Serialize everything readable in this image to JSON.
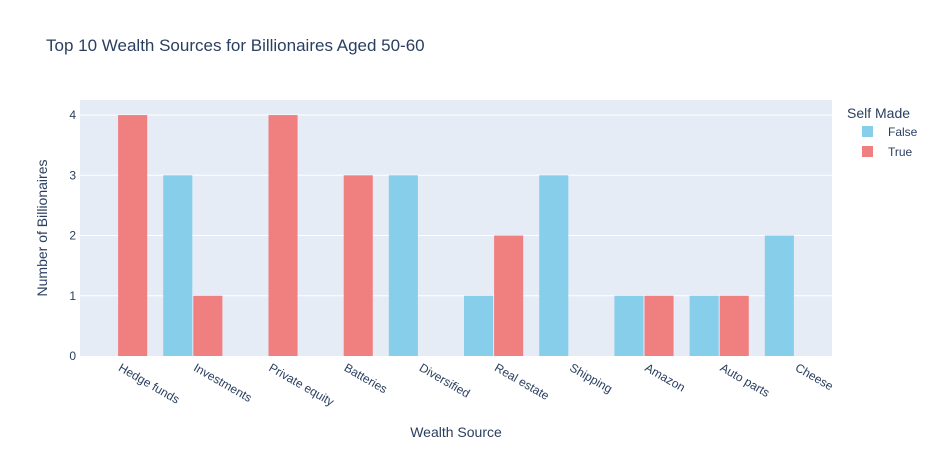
{
  "chart_data": {
    "type": "bar",
    "title": "Top 10 Wealth Sources for Billionaires Aged 50-60",
    "xlabel": "Wealth Source",
    "ylabel": "Number of Billionaires",
    "categories": [
      "Hedge funds",
      "Investments",
      "Private equity",
      "Batteries",
      "Diversified",
      "Real estate",
      "Shipping",
      "Amazon",
      "Auto parts",
      "Cheese"
    ],
    "series": [
      {
        "name": "False",
        "color": "#87ceeb",
        "values": [
          0,
          3,
          0,
          0,
          3,
          1,
          3,
          1,
          1,
          2
        ]
      },
      {
        "name": "True",
        "color": "#f08080",
        "values": [
          4,
          1,
          4,
          3,
          0,
          2,
          0,
          1,
          1,
          0
        ]
      }
    ],
    "ylim": [
      0,
      4.25
    ],
    "yticks": [
      0,
      1,
      2,
      3,
      4
    ],
    "grid": true,
    "plot_background": "#e5ecf6",
    "legend_title": "Self Made",
    "legend_position": "right"
  }
}
